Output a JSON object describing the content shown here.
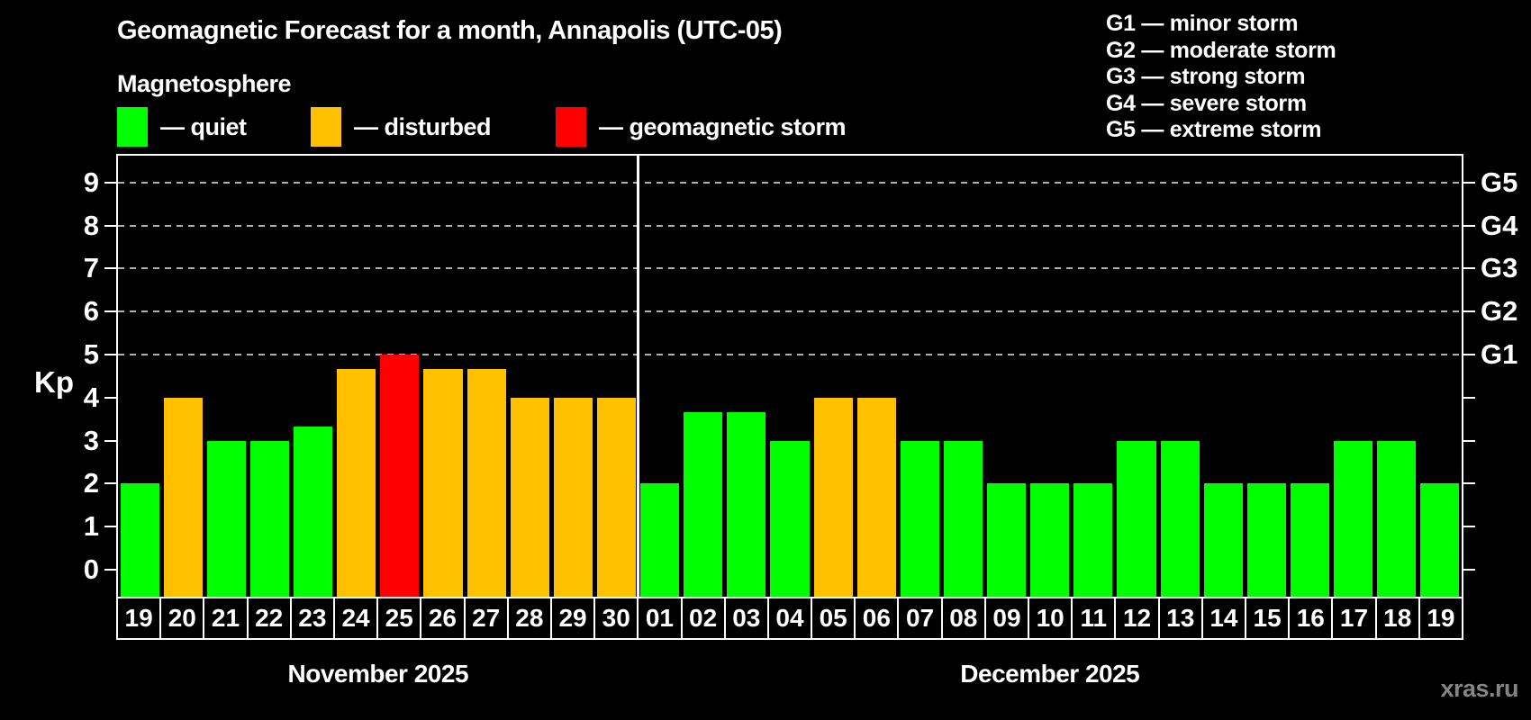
{
  "title": "Geomagnetic Forecast for a month, Annapolis (UTC-05)",
  "legend": {
    "heading": "Magnetosphere",
    "items": [
      {
        "key": "quiet",
        "label": "— quiet"
      },
      {
        "key": "disturbed",
        "label": "— disturbed"
      },
      {
        "key": "storm",
        "label": "— geomagnetic storm"
      }
    ]
  },
  "storm_scale_legend": [
    "G1 — minor storm",
    "G2 — moderate storm",
    "G3 — strong storm",
    "G4 — severe storm",
    "G5 — extreme storm"
  ],
  "colors": {
    "quiet": "#00ff00",
    "disturbed": "#ffc000",
    "storm": "#ff0000",
    "axis": "#ffffff",
    "gridline": "#b0b0b0",
    "watermark": "#858585"
  },
  "axes": {
    "y_label": "Kp",
    "y_ticks": [
      0,
      1,
      2,
      3,
      4,
      5,
      6,
      7,
      8,
      9
    ],
    "right_axis_labels": [
      {
        "label": "G1",
        "kp": 5
      },
      {
        "label": "G2",
        "kp": 6
      },
      {
        "label": "G3",
        "kp": 7
      },
      {
        "label": "G4",
        "kp": 8
      },
      {
        "label": "G5",
        "kp": 9
      }
    ]
  },
  "watermark": "xras.ru",
  "chart_data": {
    "type": "bar",
    "title": "Geomagnetic Forecast for a month, Annapolis (UTC-05)",
    "xlabel": "",
    "ylabel": "Kp",
    "ylim": [
      0,
      9
    ],
    "gridlines_at": [
      5,
      6,
      7,
      8,
      9
    ],
    "grid": "dashed horizontal lines at G1-G5 levels only",
    "legend_position": "top-left",
    "months": [
      {
        "label": "November 2025",
        "days": [
          {
            "day": "19",
            "kp": 2,
            "status": "quiet"
          },
          {
            "day": "20",
            "kp": 4,
            "status": "disturbed"
          },
          {
            "day": "21",
            "kp": 3,
            "status": "quiet"
          },
          {
            "day": "22",
            "kp": 3,
            "status": "quiet"
          },
          {
            "day": "23",
            "kp": 3.33,
            "status": "quiet"
          },
          {
            "day": "24",
            "kp": 4.67,
            "status": "disturbed"
          },
          {
            "day": "25",
            "kp": 5,
            "status": "storm"
          },
          {
            "day": "26",
            "kp": 4.67,
            "status": "disturbed"
          },
          {
            "day": "27",
            "kp": 4.67,
            "status": "disturbed"
          },
          {
            "day": "28",
            "kp": 4,
            "status": "disturbed"
          },
          {
            "day": "29",
            "kp": 4,
            "status": "disturbed"
          },
          {
            "day": "30",
            "kp": 4,
            "status": "disturbed"
          }
        ]
      },
      {
        "label": "December 2025",
        "days": [
          {
            "day": "01",
            "kp": 2,
            "status": "quiet"
          },
          {
            "day": "02",
            "kp": 3.67,
            "status": "quiet"
          },
          {
            "day": "03",
            "kp": 3.67,
            "status": "quiet"
          },
          {
            "day": "04",
            "kp": 3,
            "status": "quiet"
          },
          {
            "day": "05",
            "kp": 4,
            "status": "disturbed"
          },
          {
            "day": "06",
            "kp": 4,
            "status": "disturbed"
          },
          {
            "day": "07",
            "kp": 3,
            "status": "quiet"
          },
          {
            "day": "08",
            "kp": 3,
            "status": "quiet"
          },
          {
            "day": "09",
            "kp": 2,
            "status": "quiet"
          },
          {
            "day": "10",
            "kp": 2,
            "status": "quiet"
          },
          {
            "day": "11",
            "kp": 2,
            "status": "quiet"
          },
          {
            "day": "12",
            "kp": 3,
            "status": "quiet"
          },
          {
            "day": "13",
            "kp": 3,
            "status": "quiet"
          },
          {
            "day": "14",
            "kp": 2,
            "status": "quiet"
          },
          {
            "day": "15",
            "kp": 2,
            "status": "quiet"
          },
          {
            "day": "16",
            "kp": 2,
            "status": "quiet"
          },
          {
            "day": "17",
            "kp": 3,
            "status": "quiet"
          },
          {
            "day": "18",
            "kp": 3,
            "status": "quiet"
          },
          {
            "day": "19",
            "kp": 2,
            "status": "quiet"
          }
        ]
      }
    ]
  }
}
